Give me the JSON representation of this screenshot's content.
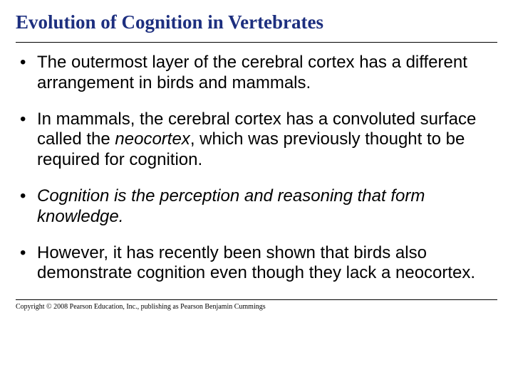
{
  "title": "Evolution of Cognition in Vertebrates",
  "bullets": {
    "b1": "The outermost layer of the cerebral cortex has a different arrangement in birds and mammals.",
    "b2_pre": "In mammals, the cerebral cortex has a convoluted surface called the ",
    "b2_em": "neocortex",
    "b2_post": ", which was previously thought to be required for cognition.",
    "b3": "Cognition is the perception and reasoning that form knowledge.",
    "b4": "However, it has recently been shown that birds also demonstrate cognition even though they lack a neocortex."
  },
  "copyright": "Copyright © 2008 Pearson Education, Inc., publishing as Pearson Benjamin Cummings"
}
